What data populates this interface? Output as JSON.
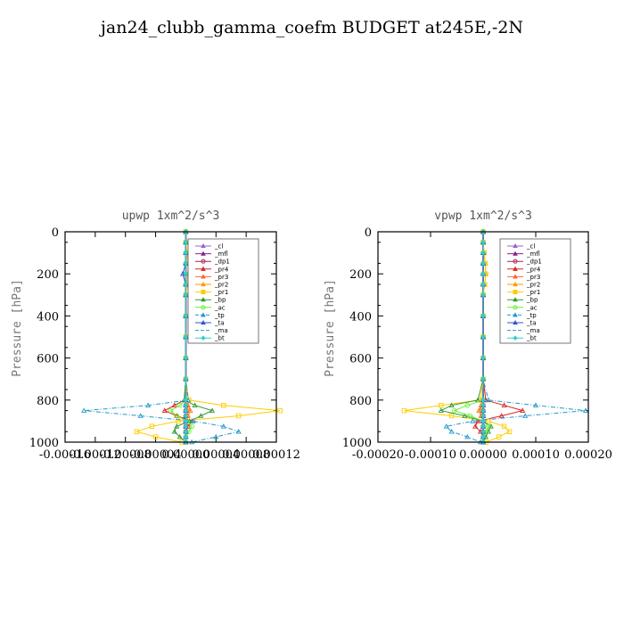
{
  "title": "jan24_clubb_gamma_coefm  BUDGET at245E,-2N",
  "chart_data": [
    {
      "type": "line",
      "title": "upwp   1xm^2/s^3",
      "ylabel": "Pressure [hPa]",
      "xlabel": "",
      "xlim": [
        -0.00016,
        0.00012
      ],
      "ylim": [
        1000,
        0
      ],
      "x_ticks": [
        "-0.00016",
        "-0.00012",
        "-0.00008",
        "-0.00004",
        "0.00000",
        "0.00004",
        "0.00008",
        "0.00012"
      ],
      "y_ticks": [
        "0",
        "200",
        "400",
        "600",
        "800",
        "1000"
      ],
      "y": [
        0,
        50,
        100,
        150,
        200,
        250,
        300,
        400,
        500,
        600,
        700,
        800,
        825,
        850,
        875,
        900,
        925,
        950,
        975,
        1000
      ],
      "series": [
        {
          "name": "_cl",
          "color": "#9966cc",
          "marker": "triangle",
          "values": [
            0,
            0,
            0,
            0,
            0,
            0,
            0,
            0,
            0,
            0,
            0,
            0,
            0,
            0,
            0,
            0,
            0,
            0,
            0,
            0
          ]
        },
        {
          "name": "_mfl",
          "color": "#882288",
          "marker": "triangle",
          "values": [
            0,
            0,
            0,
            0,
            0,
            0,
            0,
            0,
            0,
            0,
            0,
            0,
            0,
            0,
            0,
            0,
            0,
            0,
            0,
            0
          ]
        },
        {
          "name": "_dp1",
          "color": "#aa2255",
          "marker": "circle",
          "values": [
            0,
            0,
            0,
            0,
            0,
            0,
            0,
            0,
            0,
            0,
            0,
            0,
            0,
            0,
            0,
            0,
            0,
            0,
            0,
            0
          ]
        },
        {
          "name": "_pr4",
          "color": "#dd2222",
          "marker": "triangle",
          "values": [
            0,
            0,
            0,
            0,
            0,
            0,
            0,
            0,
            0,
            0,
            0,
            -2e-06,
            -1.5e-05,
            -2.8e-05,
            -1.2e-05,
            8e-06,
            3e-06,
            0,
            0,
            0
          ]
        },
        {
          "name": "_pr3",
          "color": "#ff6633",
          "marker": "triangle",
          "values": [
            0,
            0,
            0,
            0,
            0,
            0,
            0,
            0,
            0,
            0,
            0,
            0,
            3e-06,
            6e-06,
            3e-06,
            0,
            0,
            0,
            0,
            0
          ]
        },
        {
          "name": "_pr2",
          "color": "#ff9900",
          "marker": "triangle",
          "values": [
            0,
            0,
            2e-06,
            3e-06,
            3e-06,
            2e-06,
            0,
            0,
            0,
            0,
            0,
            0,
            2e-06,
            3e-06,
            2e-06,
            0,
            0,
            0,
            0,
            0
          ]
        },
        {
          "name": "_pr1",
          "color": "#ffcc00",
          "marker": "square",
          "values": [
            0,
            0,
            2e-06,
            3e-06,
            3e-06,
            2e-06,
            0,
            0,
            0,
            0,
            0,
            4e-06,
            5e-05,
            0.000125,
            7e-05,
            -1e-05,
            -4.5e-05,
            -6.5e-05,
            -4e-05,
            -5e-06
          ]
        },
        {
          "name": "_bp",
          "color": "#339933",
          "marker": "triangle",
          "values": [
            0,
            0,
            0,
            0,
            0,
            0,
            0,
            0,
            0,
            0,
            0,
            -2e-06,
            1.2e-05,
            3.5e-05,
            2e-05,
            5e-06,
            -1.2e-05,
            -1.5e-05,
            -8e-06,
            0
          ]
        },
        {
          "name": "_ac",
          "color": "#66ee33",
          "marker": "circle",
          "values": [
            0,
            0,
            0,
            0,
            0,
            0,
            0,
            0,
            0,
            0,
            0,
            0,
            -8e-06,
            -2e-05,
            -1.2e-05,
            2e-06,
            8e-06,
            4e-06,
            0,
            0
          ]
        },
        {
          "name": "_tp",
          "color": "#2299cc",
          "marker": "triangle",
          "values": [
            0,
            0,
            0,
            0,
            0,
            0,
            0,
            0,
            0,
            0,
            0,
            3e-06,
            -5e-05,
            -0.000135,
            -6e-05,
            1e-05,
            5e-05,
            7e-05,
            4e-05,
            8e-06
          ]
        },
        {
          "name": "_ta",
          "color": "#3355cc",
          "marker": "triangle",
          "values": [
            0,
            0,
            0,
            0,
            -4e-06,
            0,
            0,
            0,
            0,
            0,
            0,
            0,
            0,
            0,
            0,
            0,
            0,
            0,
            0,
            0
          ]
        },
        {
          "name": "_ma",
          "color": "#3399aa",
          "marker": "none",
          "values": [
            0,
            0,
            0,
            0,
            0,
            0,
            0,
            0,
            0,
            0,
            0,
            0,
            0,
            0,
            0,
            0,
            0,
            0,
            0,
            0
          ]
        },
        {
          "name": "_bt",
          "color": "#33cccc",
          "marker": "diamond",
          "values": [
            0,
            0,
            0,
            0,
            0,
            0,
            0,
            0,
            0,
            0,
            0,
            0,
            0,
            0,
            0,
            0,
            0,
            0,
            0,
            0
          ]
        }
      ]
    },
    {
      "type": "line",
      "title": "vpwp   1xm^2/s^3",
      "ylabel": "Pressure [hPa]",
      "xlabel": "",
      "xlim": [
        -0.0002,
        0.0002
      ],
      "ylim": [
        1000,
        0
      ],
      "x_ticks": [
        "-0.00020",
        "-0.00010",
        "0.00000",
        "0.00010",
        "0.00020"
      ],
      "y_ticks": [
        "0",
        "200",
        "400",
        "600",
        "800",
        "1000"
      ],
      "y": [
        0,
        50,
        100,
        150,
        200,
        250,
        300,
        400,
        500,
        600,
        700,
        800,
        825,
        850,
        875,
        900,
        925,
        950,
        975,
        1000
      ],
      "series": [
        {
          "name": "_cl",
          "color": "#9966cc",
          "marker": "triangle",
          "values": [
            0,
            0,
            0,
            0,
            0,
            0,
            0,
            0,
            0,
            0,
            0,
            0,
            0,
            0,
            0,
            0,
            0,
            0,
            0,
            0
          ]
        },
        {
          "name": "_mfl",
          "color": "#882288",
          "marker": "triangle",
          "values": [
            0,
            0,
            0,
            0,
            0,
            0,
            0,
            0,
            0,
            0,
            0,
            0,
            0,
            0,
            0,
            0,
            0,
            0,
            0,
            0
          ]
        },
        {
          "name": "_dp1",
          "color": "#aa2255",
          "marker": "circle",
          "values": [
            0,
            0,
            0,
            0,
            0,
            0,
            0,
            0,
            0,
            0,
            0,
            0,
            0,
            0,
            0,
            0,
            0,
            0,
            0,
            0
          ]
        },
        {
          "name": "_pr4",
          "color": "#dd2222",
          "marker": "triangle",
          "values": [
            0,
            0,
            0,
            0,
            0,
            0,
            0,
            0,
            0,
            0,
            0,
            5e-06,
            4e-05,
            7.5e-05,
            3.5e-05,
            -1e-05,
            -1.5e-05,
            -5e-06,
            0,
            0
          ]
        },
        {
          "name": "_pr3",
          "color": "#ff6633",
          "marker": "triangle",
          "values": [
            0,
            0,
            0,
            0,
            0,
            0,
            0,
            0,
            0,
            0,
            0,
            0,
            -4e-06,
            -8e-06,
            -4e-06,
            0,
            0,
            0,
            0,
            0
          ]
        },
        {
          "name": "_pr2",
          "color": "#ff9900",
          "marker": "triangle",
          "values": [
            0,
            0,
            2e-06,
            4e-06,
            5e-06,
            3e-06,
            0,
            0,
            0,
            0,
            0,
            0,
            -3e-06,
            -5e-06,
            -2e-06,
            0,
            0,
            0,
            0,
            0
          ]
        },
        {
          "name": "_pr1",
          "color": "#ffcc00",
          "marker": "square",
          "values": [
            0,
            0,
            2e-06,
            4e-06,
            5e-06,
            3e-06,
            0,
            0,
            0,
            0,
            0,
            -5e-06,
            -8e-05,
            -0.00015,
            -6e-05,
            1e-05,
            4e-05,
            5e-05,
            3e-05,
            5e-06
          ]
        },
        {
          "name": "_bp",
          "color": "#339933",
          "marker": "triangle",
          "values": [
            0,
            0,
            0,
            0,
            0,
            0,
            0,
            0,
            0,
            0,
            0,
            -1e-05,
            -6e-05,
            -8e-05,
            -3.5e-05,
            0,
            1.5e-05,
            1e-05,
            5e-06,
            0
          ]
        },
        {
          "name": "_ac",
          "color": "#66ee33",
          "marker": "circle",
          "values": [
            0,
            0,
            0,
            0,
            0,
            0,
            0,
            0,
            0,
            0,
            0,
            0,
            -3e-05,
            -5.5e-05,
            -2.5e-05,
            0,
            1e-05,
            5e-06,
            0,
            0
          ]
        },
        {
          "name": "_tp",
          "color": "#2299cc",
          "marker": "triangle",
          "values": [
            0,
            0,
            0,
            0,
            0,
            0,
            0,
            0,
            0,
            0,
            0,
            1e-05,
            0.0001,
            0.000195,
            8e-05,
            -2e-05,
            -7e-05,
            -6e-05,
            -3e-05,
            -5e-06
          ]
        },
        {
          "name": "_ta",
          "color": "#3355cc",
          "marker": "triangle",
          "values": [
            0,
            0,
            0,
            0,
            0,
            0,
            0,
            0,
            0,
            0,
            0,
            0,
            0,
            0,
            0,
            0,
            0,
            0,
            0,
            0
          ]
        },
        {
          "name": "_ma",
          "color": "#3399aa",
          "marker": "none",
          "values": [
            0,
            0,
            0,
            0,
            0,
            0,
            0,
            0,
            0,
            0,
            0,
            0,
            0,
            0,
            0,
            0,
            0,
            0,
            0,
            0
          ]
        },
        {
          "name": "_bt",
          "color": "#33cccc",
          "marker": "diamond",
          "values": [
            0,
            0,
            0,
            0,
            0,
            0,
            0,
            0,
            0,
            0,
            0,
            0,
            0,
            0,
            0,
            0,
            0,
            0,
            0,
            0
          ]
        }
      ]
    }
  ]
}
